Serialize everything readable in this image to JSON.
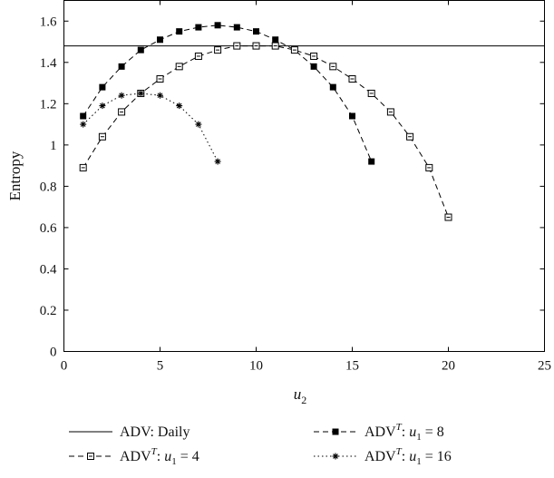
{
  "chart_data": {
    "type": "line",
    "xlabel": "u",
    "xlabel_sub": "2",
    "ylabel": "Entropy",
    "xlim": [
      0,
      25
    ],
    "ylim": [
      0,
      1.7
    ],
    "x_ticks": [
      0,
      5,
      10,
      15,
      20,
      25
    ],
    "y_ticks": [
      0,
      0.2,
      0.4,
      0.6,
      0.8,
      1,
      1.2,
      1.4,
      1.6
    ],
    "x_tick_labels": [
      "0",
      "5",
      "10",
      "15",
      "20",
      "25"
    ],
    "y_tick_labels": [
      "0",
      "0.2",
      "0.4",
      "0.6",
      "0.8",
      "1",
      "1.2",
      "1.4",
      "1.6"
    ],
    "grid": false,
    "legend_position": "bottom",
    "series": [
      {
        "label": "ADV: Daily",
        "style": "solid",
        "marker": "none",
        "x": [
          0,
          25
        ],
        "y": [
          1.48,
          1.48
        ]
      },
      {
        "label": "ADVT: u1 = 8",
        "style": "dashed",
        "marker": "filled-square",
        "x": [
          1,
          2,
          3,
          4,
          5,
          6,
          7,
          8,
          9,
          10,
          11,
          12,
          13,
          14,
          15,
          16
        ],
        "y": [
          1.14,
          1.28,
          1.38,
          1.46,
          1.51,
          1.55,
          1.57,
          1.58,
          1.57,
          1.55,
          1.51,
          1.46,
          1.38,
          1.28,
          1.14,
          0.92
        ]
      },
      {
        "label": "ADVT: u1 = 4",
        "style": "dashed",
        "marker": "hollow-square",
        "x": [
          1,
          2,
          3,
          4,
          5,
          6,
          7,
          8,
          9,
          10,
          11,
          12,
          13,
          14,
          15,
          16,
          17,
          18,
          19,
          20
        ],
        "y": [
          0.89,
          1.04,
          1.16,
          1.25,
          1.32,
          1.38,
          1.43,
          1.46,
          1.48,
          1.48,
          1.48,
          1.46,
          1.43,
          1.38,
          1.32,
          1.25,
          1.16,
          1.04,
          0.89,
          0.65
        ]
      },
      {
        "label": "ADVT: u1 = 16",
        "style": "dotted",
        "marker": "asterisk",
        "x": [
          1,
          2,
          3,
          4,
          5,
          6,
          7,
          8
        ],
        "y": [
          1.1,
          1.19,
          1.24,
          1.25,
          1.24,
          1.19,
          1.1,
          0.92
        ]
      }
    ],
    "legend": [
      {
        "base": "ADV: Daily",
        "sup": "",
        "rest": ""
      },
      {
        "base": "ADV",
        "sup": "T",
        "rest": ": u",
        "sub": "1",
        "tail": " = 8"
      },
      {
        "base": "ADV",
        "sup": "T",
        "rest": ": u",
        "sub": "1",
        "tail": " = 4"
      },
      {
        "base": "ADV",
        "sup": "T",
        "rest": ": u",
        "sub": "1",
        "tail": " = 16"
      }
    ]
  }
}
